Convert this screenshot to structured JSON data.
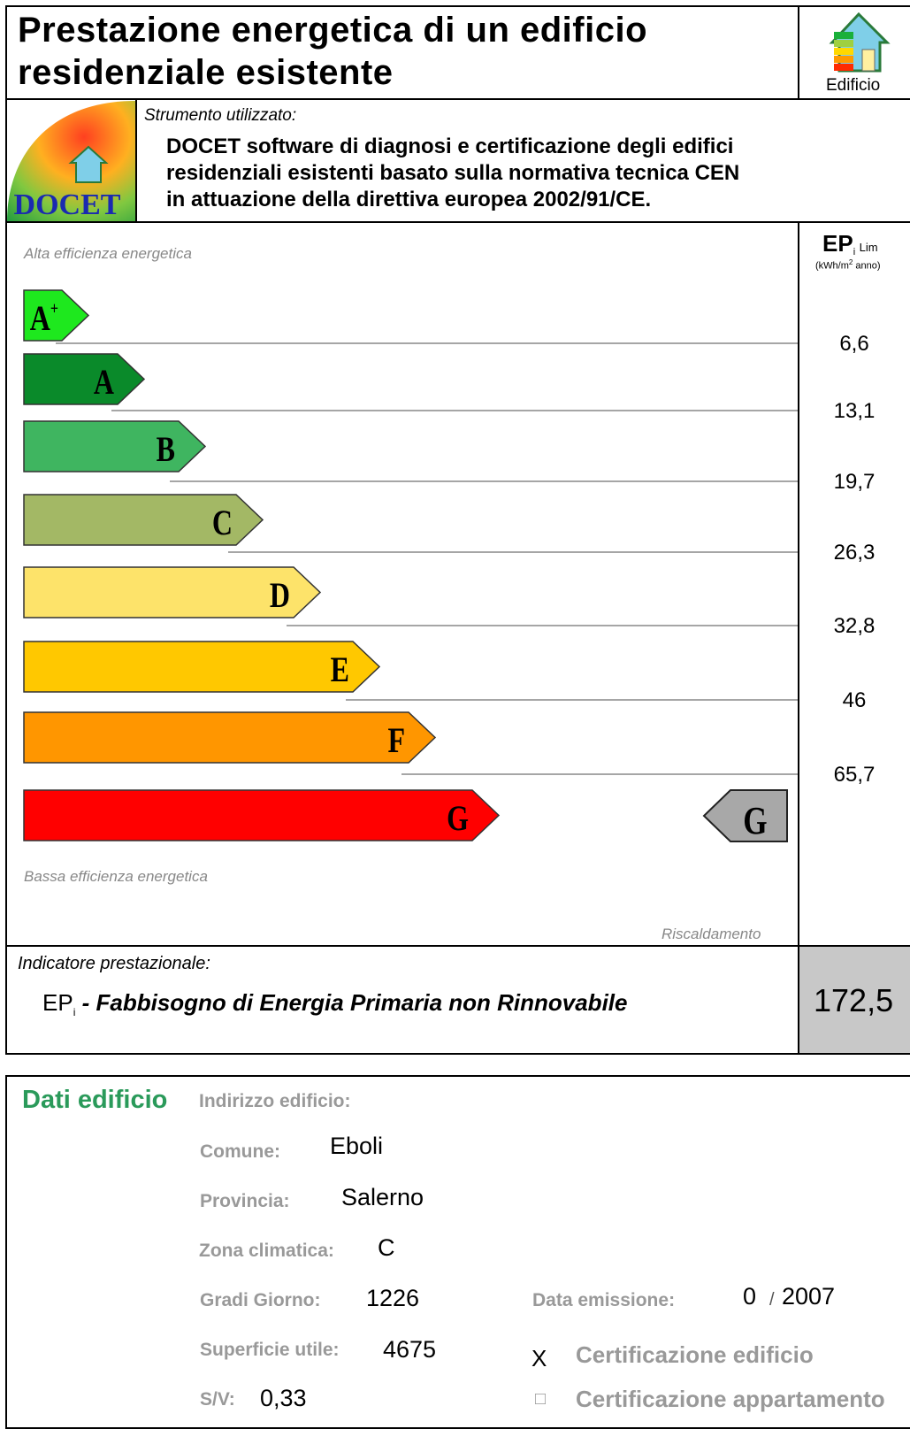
{
  "header": {
    "title_lines": [
      "Prestazione energetica di un edificio",
      "residenziale esistente"
    ],
    "icon_label": "Edificio"
  },
  "tool": {
    "label": "Strumento utilizzato:",
    "logo_text": "DOCET",
    "lines": [
      "DOCET software di diagnosi e certificazione degli edifici",
      "residenziali esistenti basato sulla normativa tecnica CEN",
      "in attuazione della direttiva europea 2002/91/CE."
    ]
  },
  "scale": {
    "top_label": "Alta efficienza energetica",
    "bottom_label": "Bassa efficienza energetica",
    "footer": "Riscaldamento",
    "column_header": {
      "symbol": "EP",
      "sub": "i",
      "sub2": "Lim",
      "unit_start": "(kWh/m",
      "unit_sup": "2",
      "unit_end": "anno)"
    },
    "classes": [
      {
        "label": "A",
        "sup": "+",
        "color": "#1ee81e"
      },
      {
        "label": "A",
        "color": "#0a8a2a"
      },
      {
        "label": "B",
        "color": "#3fb560"
      },
      {
        "label": "C",
        "color": "#a3b865"
      },
      {
        "label": "D",
        "color": "#fde36a"
      },
      {
        "label": "E",
        "color": "#ffc800"
      },
      {
        "label": "F",
        "color": "#ff9600"
      },
      {
        "label": "G",
        "color": "#ff0000"
      }
    ],
    "limits": [
      "6,6",
      "13,1",
      "19,7",
      "26,3",
      "32,8",
      "46",
      "65,7"
    ],
    "current_class": {
      "label": "G",
      "color": "#a8a8a8"
    }
  },
  "indicator": {
    "label": "Indicatore prestazionale:",
    "symbol": "EP",
    "sub": "i",
    "dash": "-",
    "description": "Fabbisogno di Energia Primaria non Rinnovabile",
    "value": "172,5"
  },
  "building": {
    "title": "Dati edificio",
    "address_label": "Indirizzo edificio:",
    "fields": [
      {
        "label": "Comune:",
        "value": "Eboli"
      },
      {
        "label": "Provincia:",
        "value": "Salerno"
      },
      {
        "label": "Zona climatica:",
        "value": "C"
      },
      {
        "label": "Gradi Giorno:",
        "value": "1226"
      },
      {
        "label": "Superficie utile:",
        "value": "4675"
      },
      {
        "label": "S/V:",
        "value": "0,33"
      }
    ],
    "issue": {
      "label": "Data emissione:",
      "month": "0",
      "separator": "/",
      "year": "2007"
    },
    "certifications": [
      {
        "mark": "X",
        "label": "Certificazione edificio"
      },
      {
        "mark": "□",
        "label": "Certificazione appartamento"
      }
    ]
  }
}
